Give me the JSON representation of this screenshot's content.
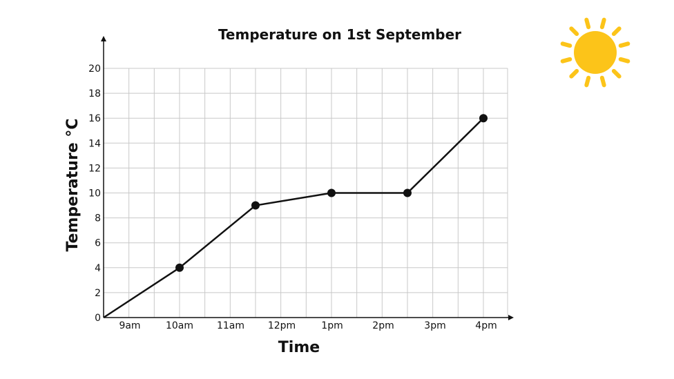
{
  "chart_data": {
    "type": "line",
    "title": "Temperature on 1st September",
    "xlabel": "Time",
    "ylabel": "Temperature °C",
    "ylim": [
      0,
      20
    ],
    "y_ticks": [
      0,
      2,
      4,
      6,
      8,
      10,
      12,
      14,
      16,
      18,
      20
    ],
    "x_tick_labels": [
      "9am",
      "10am",
      "11am",
      "12pm",
      "1pm",
      "2pm",
      "3pm",
      "4pm"
    ],
    "grid": true,
    "series": [
      {
        "points": [
          {
            "x": "8:30am",
            "y": 0
          },
          {
            "x": "10am",
            "y": 4
          },
          {
            "x": "11:30am",
            "y": 9
          },
          {
            "x": "1pm",
            "y": 10
          },
          {
            "x": "2:30pm",
            "y": 10
          },
          {
            "x": "4pm",
            "y": 16
          }
        ]
      }
    ]
  },
  "decoration": {
    "sun_icon": "sun-icon",
    "sun_color": "#fcc419"
  }
}
